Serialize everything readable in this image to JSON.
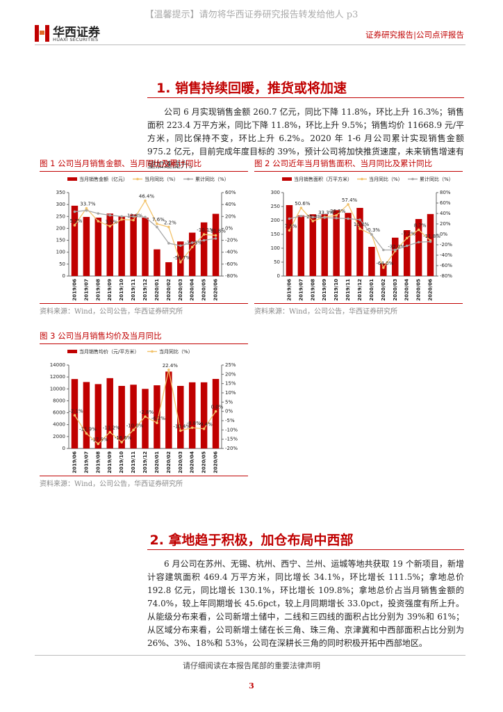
{
  "header": {
    "notice": "【温馨提示】请勿将华西证券研究报告转发给他人 p3",
    "logo_cn": "华西证券",
    "logo_en": "HUAXI SECURITIES",
    "report_type": "证券研究报告|公司点评报告"
  },
  "section1": {
    "title": "1. 销售持续回暖，推货或将加速",
    "paragraph": "公司 6 月实现销售金额 260.7 亿元，同比下降 11.8%，环比上升 16.3%；销售面积 223.4 万平方米，同比下降 11.8%，环比上升 9.5%；销售均价 11668.9 元/平方米，同比保持不变，环比上升 6.2%。2020 年 1-6 月公司累计实现销售金额 975.2 亿元，目前完成年度目标的 39%，预计公司将加快推货速度，未来销售增速有望加速提升。"
  },
  "figures": [
    {
      "caption": "图 1 公司当月销售金额、当月同比及累计同比",
      "source": "资料来源：Wind，公司公告，华西证券研究所"
    },
    {
      "caption": "图 2 公司近年当月销售面积、当月同比及累计同比",
      "source": "资料来源：Wind，公司公告，华西证券研究所"
    },
    {
      "caption": "图 3 公司当月销售均价及当月同比",
      "source": "资料来源：Wind，公司公告，华西证券研究所"
    }
  ],
  "chart_data": [
    {
      "type": "bar-line",
      "categories": [
        "2019/06",
        "2019/07",
        "2019/08",
        "2019/09",
        "2019/10",
        "2019/11",
        "2019/12",
        "2020/01",
        "2020/02",
        "2020/03",
        "2020/04",
        "2020/05",
        "2020/06"
      ],
      "ylim": [
        0,
        350
      ],
      "yticks": [
        0,
        50,
        100,
        150,
        200,
        250,
        300,
        350
      ],
      "y2lim": [
        -80,
        60
      ],
      "y2ticks": [
        {
          "value": -80,
          "label": "-80%"
        },
        {
          "value": -60,
          "label": "-60%"
        },
        {
          "value": -40,
          "label": "-40%"
        },
        {
          "value": -20,
          "label": "-20%"
        },
        {
          "value": 0,
          "label": "0%"
        },
        {
          "value": 20,
          "label": "20%"
        },
        {
          "value": 40,
          "label": "40%"
        },
        {
          "value": 60,
          "label": "60%"
        }
      ],
      "series": [
        {
          "name": "当月销售金额（亿元）",
          "type": "bar",
          "color": "#c00000",
          "values": [
            295,
            248,
            245,
            262,
            250,
            258,
            245,
            112,
            58,
            145,
            182,
            225,
            261
          ]
        },
        {
          "name": "当月同比（%）",
          "type": "line",
          "axis": "y2",
          "color": "#f2c36b",
          "values": [
            5.2,
            33.7,
            12.0,
            3.5,
            15.0,
            13.8,
            46.4,
            7.6,
            2.2,
            -56.7,
            -31.3,
            -10.1,
            -11.8
          ],
          "value_labels": [
            "5.2%",
            "33.7%",
            null,
            "3.5%",
            null,
            "13.8%",
            "46.4%",
            "7.6%",
            "2.2%",
            "-56.7%",
            "-31.3%",
            "-10.1%",
            "-11.8%"
          ]
        },
        {
          "name": "累计同比（%）",
          "type": "line",
          "axis": "y2",
          "color": "#a6a6a6",
          "values": [
            28,
            30,
            25,
            22,
            20,
            20,
            19,
            2.2,
            -25,
            -29,
            -24,
            -20,
            -17
          ]
        }
      ]
    },
    {
      "type": "bar-line",
      "categories": [
        "2019/06",
        "2019/07",
        "2019/08",
        "2019/09",
        "2019/10",
        "2019/11",
        "2019/12",
        "2020/01",
        "2020/02",
        "2020/03",
        "2020/04",
        "2020/05",
        "2020/06"
      ],
      "ylim": [
        0,
        300
      ],
      "yticks": [
        0,
        50,
        100,
        150,
        200,
        250,
        300
      ],
      "y2lim": [
        -80,
        80
      ],
      "y2ticks": [
        {
          "value": -80,
          "label": "-80%"
        },
        {
          "value": -60,
          "label": "-60%"
        },
        {
          "value": -40,
          "label": "-40%"
        },
        {
          "value": -20,
          "label": "-20%"
        },
        {
          "value": 0,
          "label": "0%"
        },
        {
          "value": 20,
          "label": "20%"
        },
        {
          "value": 40,
          "label": "40%"
        },
        {
          "value": 60,
          "label": "60%"
        },
        {
          "value": 80,
          "label": "80%"
        }
      ],
      "series": [
        {
          "name": "当月销售面积（万平方米）",
          "type": "bar",
          "color": "#c00000",
          "values": [
            255,
            218,
            222,
            222,
            237,
            227,
            245,
            105,
            45,
            138,
            165,
            205,
            223
          ]
        },
        {
          "name": "当月同比（%）",
          "type": "line",
          "axis": "y2",
          "color": "#f2c36b",
          "values": [
            7.5,
            50.6,
            25.3,
            33.3,
            36.3,
            57.4,
            10.8,
            -0.3,
            -64.0,
            -32.0,
            -7.2,
            8.7,
            -11.8
          ],
          "value_labels": [
            "7.5%",
            "50.6%",
            "25.3%",
            "33.3%",
            "36.3%",
            "57.4%",
            "10.8%",
            "-0.3%",
            "-64.0%",
            "-32.0%",
            "-7.2%",
            "8.7%",
            "-11.8%"
          ]
        },
        {
          "name": "累计同比（%）",
          "type": "line",
          "axis": "y2",
          "color": "#a6a6a6",
          "values": [
            30,
            35,
            33,
            32,
            31,
            30,
            28,
            -0.3,
            -30,
            -30,
            -22,
            -15,
            -14
          ]
        }
      ]
    },
    {
      "type": "bar-line",
      "categories": [
        "2019/06",
        "2019/07",
        "2019/08",
        "2019/09",
        "2019/10",
        "2019/11",
        "2019/12",
        "2020/01",
        "2020/02",
        "2020/03",
        "2020/04",
        "2020/05",
        "2020/06"
      ],
      "ylim": [
        0,
        14000
      ],
      "yticks": [
        0,
        2000,
        4000,
        6000,
        8000,
        10000,
        12000,
        14000
      ],
      "y2lim": [
        -20,
        25
      ],
      "y2ticks": [
        {
          "value": -20,
          "label": "-20%"
        },
        {
          "value": -15,
          "label": "-15%"
        },
        {
          "value": -10,
          "label": "-10%"
        },
        {
          "value": -5,
          "label": "-5%"
        },
        {
          "value": 0,
          "label": "0%"
        },
        {
          "value": 5,
          "label": "5%"
        },
        {
          "value": 10,
          "label": "10%"
        },
        {
          "value": 15,
          "label": "15%"
        },
        {
          "value": 20,
          "label": "20%"
        },
        {
          "value": 25,
          "label": "25%"
        }
      ],
      "series": [
        {
          "name": "当月销售均价（元/平方米）",
          "type": "bar",
          "color": "#c00000",
          "values": [
            11650,
            11150,
            10800,
            11800,
            10500,
            10700,
            10000,
            10600,
            12900,
            10500,
            11100,
            11100,
            11669
          ]
        },
        {
          "name": "当月同比（%）",
          "type": "line",
          "axis": "y2",
          "color": "#f2c36b",
          "values": [
            -2.1,
            -11.9,
            -17.5,
            -11.2,
            -16.6,
            -10.0,
            -2.8,
            -6.2,
            22.4,
            -10.4,
            -8.8,
            -9.4,
            0.0
          ],
          "value_labels": [
            "-2.1%",
            "-11.9%",
            "-17.5%",
            "-11.2%",
            "-16.6%",
            "-10.0%",
            "-2.8%",
            "-6.2%",
            "22.4%",
            "-10.4%",
            "-8.8%",
            "-9.4%",
            "0.0%"
          ]
        }
      ]
    }
  ],
  "section2": {
    "title": "2. 拿地趋于积极，加仓布局中西部",
    "paragraph": "6 月公司在苏州、无锡、杭州、西宁、兰州、运城等地共获取 19 个新项目，新增计容建筑面积 469.4 万平方米，同比增长 34.1%，环比增长 111.5%；拿地总价 192.8 亿元，同比增长 130.1%，环比增长 109.8%；拿地总价占当月销售金额的 74.0%，较上年同期增长 45.6pct，较上月同期增长 33.0pct，投资强度有所上升。从能级分布来看，公司新增土储中，二线和三四线的面积占比分别为 39%和 61%；从区域分布来看，公司新增土储在长三角、珠三角、京津冀和中西部面积占比分别为 26%、3%、18%和 53%，公司在深耕长三角的同时积极开拓中西部地区。"
  },
  "footer": {
    "notice": "请仔细阅读在本报告尾部的重要法律声明",
    "page": "3"
  }
}
